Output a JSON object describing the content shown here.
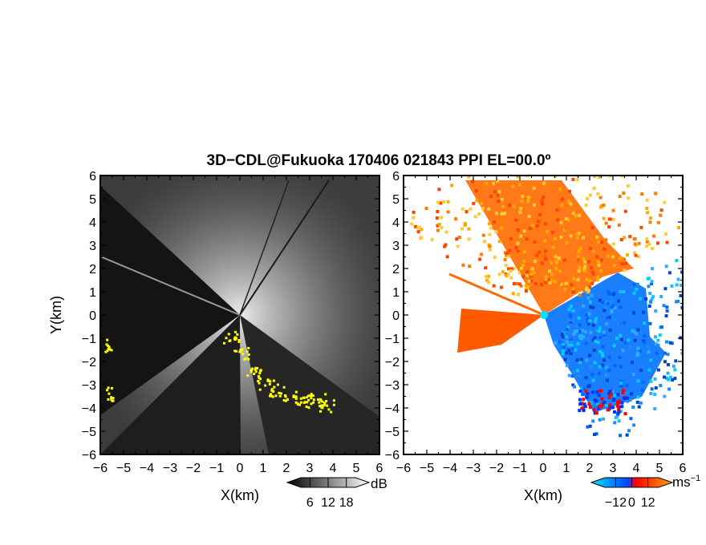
{
  "title": "3D−CDL@Fukuoka 170406 021843 PPI EL=00.0º",
  "chart_data": [
    {
      "type": "heatmap",
      "panel": "left",
      "xlabel": "X(km)",
      "ylabel": "Y(km)",
      "xlim": [
        -6,
        6
      ],
      "ylim": [
        -6,
        6
      ],
      "xticks": [
        -6,
        -5,
        -4,
        -3,
        -2,
        -1,
        0,
        1,
        2,
        3,
        4,
        5,
        6
      ],
      "yticks": [
        -6,
        -5,
        -4,
        -3,
        -2,
        -1,
        0,
        1,
        2,
        3,
        4,
        5,
        6
      ],
      "xtick_labels": [
        "−6",
        "−5",
        "−4",
        "−3",
        "−2",
        "−1",
        "0",
        "1",
        "2",
        "3",
        "4",
        "5",
        "6"
      ],
      "ytick_labels": [
        "−6",
        "−5",
        "−4",
        "−3",
        "−2",
        "−1",
        "0",
        "1",
        "2",
        "3",
        "4",
        "5",
        "6"
      ],
      "colorbar": {
        "unit": "dB",
        "ticks": [
          6,
          12,
          18
        ],
        "tick_labels": [
          "6",
          "12",
          "18"
        ],
        "colors": [
          "#000000",
          "#ffffff"
        ]
      },
      "highlight_color": "#ffff00",
      "dark_sector_deg": [
        115,
        205
      ]
    },
    {
      "type": "heatmap",
      "panel": "right",
      "xlabel": "X(km)",
      "xlim": [
        -6,
        6
      ],
      "ylim": [
        -6,
        6
      ],
      "xticks": [
        -6,
        -5,
        -4,
        -3,
        -2,
        -1,
        0,
        1,
        2,
        3,
        4,
        5,
        6
      ],
      "yticks": [
        -6,
        -5,
        -4,
        -3,
        -2,
        -1,
        0,
        1,
        2,
        3,
        4,
        5,
        6
      ],
      "xtick_labels": [
        "−6",
        "−5",
        "−4",
        "−3",
        "−2",
        "−1",
        "0",
        "1",
        "2",
        "3",
        "4",
        "5",
        "6"
      ],
      "ytick_labels": [
        "−6",
        "−5",
        "−4",
        "−3",
        "−2",
        "−1",
        "0",
        "1",
        "2",
        "3",
        "4",
        "5",
        "6"
      ],
      "colorbar": {
        "unit": "ms",
        "unit_exponent": "−1",
        "ticks": [
          -12,
          0,
          12
        ],
        "tick_labels": [
          "−12",
          "0",
          "12"
        ],
        "colors": [
          "#00e5ff",
          "#0055ff",
          "#ff0000",
          "#ffaa00"
        ]
      }
    }
  ]
}
